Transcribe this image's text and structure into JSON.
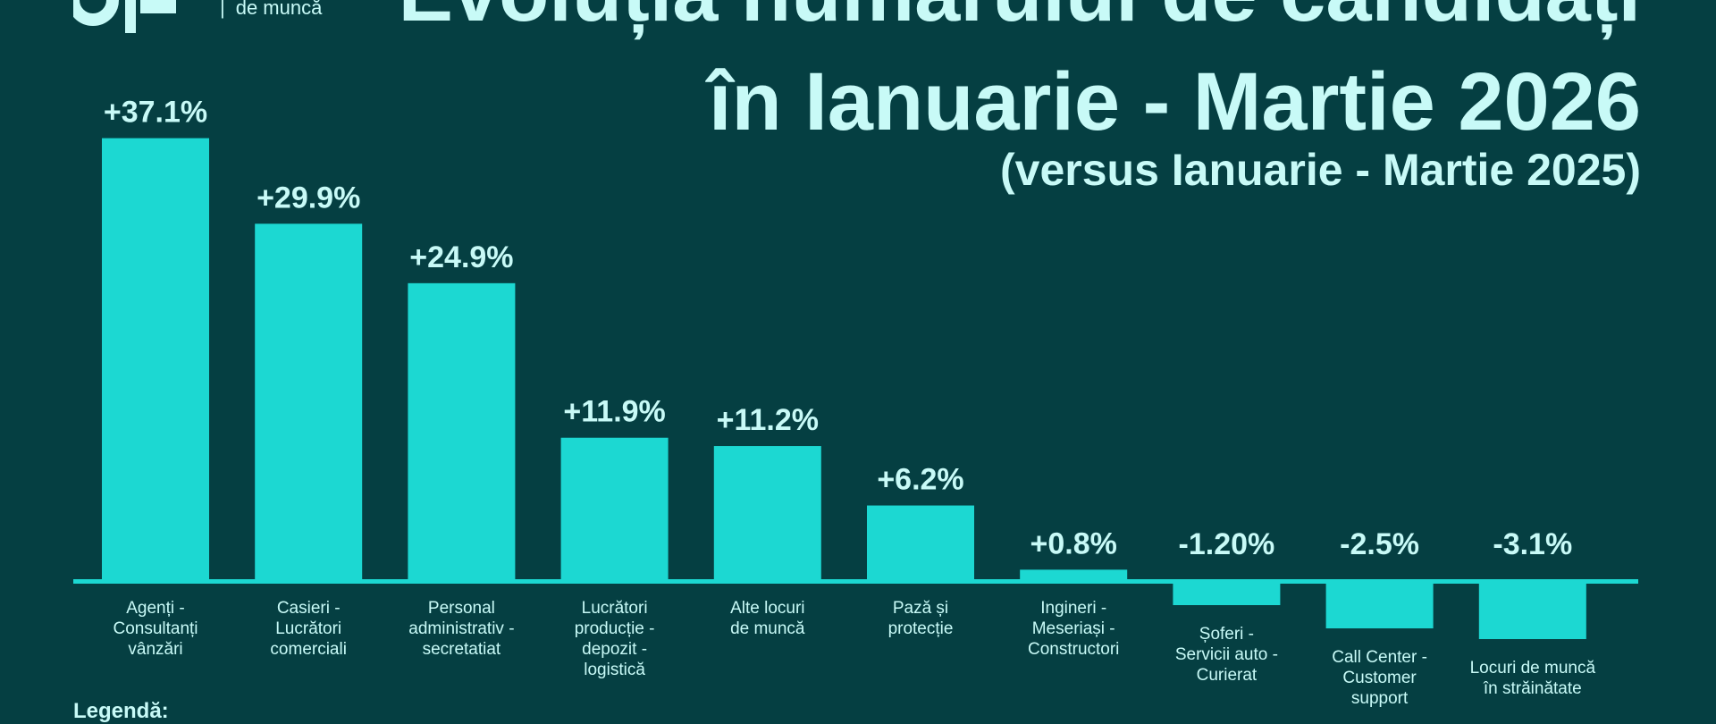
{
  "logo": {
    "text": "de muncă"
  },
  "title_line1": "Evoluția numărului de candidați",
  "title_line2": "în Ianuarie - Martie 2026",
  "subtitle": "(versus Ianuarie - Martie 2025)",
  "legend_label": "Legendă:",
  "colors": {
    "background": "#053f42",
    "bar": "#1cd8d2",
    "text": "#c8faf7"
  },
  "chart_data": {
    "type": "bar",
    "title": "Evoluția numărului de candidați în Ianuarie - Martie 2026 (versus Ianuarie - Martie 2025)",
    "categories": [
      [
        "Agenți -",
        "Consultanți",
        "vânzări"
      ],
      [
        "Casieri -",
        "Lucrători",
        "comerciali"
      ],
      [
        "Personal",
        "administrativ -",
        "secretatiat"
      ],
      [
        "Lucrători",
        "producție -",
        "depozit -",
        "logistică"
      ],
      [
        "Alte locuri",
        "de muncă"
      ],
      [
        "Pază și",
        "protecție"
      ],
      [
        "Ingineri -",
        "Meseriași -",
        "Constructori"
      ],
      [
        "Șoferi -",
        "Servicii auto -",
        "Curierat"
      ],
      [
        "Call Center -",
        "Customer",
        "support"
      ],
      [
        "Locuri de muncă",
        "în străinătate"
      ]
    ],
    "values": [
      37.1,
      29.9,
      24.9,
      11.9,
      11.2,
      6.2,
      0.8,
      -1.2,
      -2.5,
      -3.1
    ],
    "labels": [
      "+37.1%",
      "+29.9%",
      "+24.9%",
      "+11.9%",
      "+11.2%",
      "+6.2%",
      "+0.8%",
      "-1.20%",
      "-2.5%",
      "-3.1%"
    ],
    "unit": "%",
    "xlabel": "",
    "ylabel": "",
    "grid": false
  }
}
